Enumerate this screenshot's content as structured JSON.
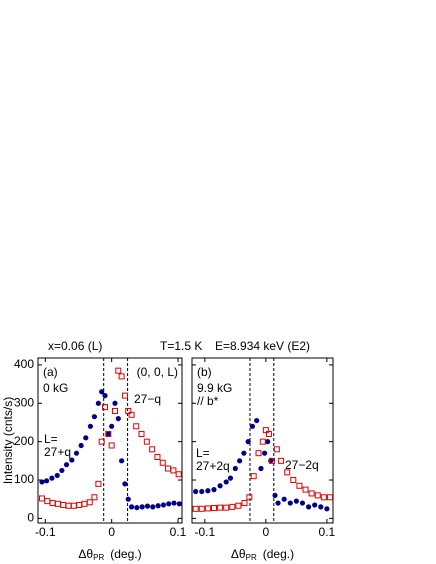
{
  "header": [
    "x=0.06 (L)",
    "T=1.5 K",
    "E=8.934 keV (E2)"
  ],
  "chart_data": [
    {
      "type": "scatter",
      "panel": "(a)",
      "field": [
        "0 kG"
      ],
      "index": "(0, 0, L)",
      "ylabel": "Intensity (cnts/s)",
      "xlabel": [
        "Δθ",
        "PR",
        "(deg.)"
      ],
      "xlim": [
        -0.111,
        0.106
      ],
      "ylim": [
        -12,
        418
      ],
      "xticks": [
        -0.1,
        0,
        0.1
      ],
      "yticks": [
        0,
        100,
        200,
        300,
        400
      ],
      "ytick_labels": true,
      "dashed": [
        -0.012,
        0.024
      ],
      "annotations": [
        [
          "L=",
          "27+q"
        ],
        [
          "27−q"
        ]
      ],
      "series": [
        {
          "color": "#00008b",
          "marker": "circle",
          "x": [
            -0.105,
            -0.098,
            -0.09,
            -0.082,
            -0.075,
            -0.068,
            -0.06,
            -0.053,
            -0.046,
            -0.039,
            -0.032,
            -0.026,
            -0.02,
            -0.015,
            -0.01,
            -0.005,
            0,
            0.005,
            0.01,
            0.015,
            0.02,
            0.025,
            0.03,
            0.038,
            0.046,
            0.054,
            0.062,
            0.07,
            0.078,
            0.086,
            0.094,
            0.102
          ],
          "values": [
            95,
            98,
            105,
            112,
            125,
            140,
            152,
            170,
            190,
            210,
            240,
            265,
            300,
            330,
            320,
            220,
            240,
            300,
            260,
            150,
            90,
            50,
            30,
            28,
            30,
            32,
            30,
            33,
            35,
            38,
            40,
            38
          ]
        },
        {
          "color": "#e00000",
          "marker": "square",
          "x": [
            -0.105,
            -0.097,
            -0.089,
            -0.081,
            -0.073,
            -0.065,
            -0.057,
            -0.049,
            -0.041,
            -0.033,
            -0.026,
            -0.02,
            -0.015,
            -0.01,
            -0.005,
            0,
            0.005,
            0.01,
            0.015,
            0.02,
            0.025,
            0.03,
            0.037,
            0.045,
            0.053,
            0.061,
            0.069,
            0.077,
            0.085,
            0.093,
            0.101
          ],
          "values": [
            52,
            45,
            40,
            38,
            35,
            33,
            33,
            35,
            38,
            42,
            55,
            90,
            200,
            290,
            220,
            190,
            280,
            385,
            370,
            320,
            280,
            270,
            240,
            220,
            200,
            180,
            160,
            145,
            130,
            125,
            115
          ]
        }
      ]
    },
    {
      "type": "scatter",
      "panel": "(b)",
      "field": [
        "9.9 kG",
        "// b*"
      ],
      "xlabel": [
        "Δθ",
        "PR",
        "(deg.)"
      ],
      "xlim": [
        -0.121,
        0.11
      ],
      "ylim": [
        -12,
        418
      ],
      "xticks": [
        -0.1,
        0,
        0.1
      ],
      "yticks": [
        0,
        100,
        200,
        300,
        400
      ],
      "ytick_labels": false,
      "dashed": [
        -0.026,
        0.013
      ],
      "annotations": [
        [
          "L=",
          "27+2q"
        ],
        [
          "27−2q"
        ]
      ],
      "series": [
        {
          "color": "#00008b",
          "marker": "circle",
          "x": [
            -0.115,
            -0.105,
            -0.095,
            -0.085,
            -0.075,
            -0.065,
            -0.058,
            -0.05,
            -0.043,
            -0.036,
            -0.029,
            -0.022,
            -0.015,
            -0.008,
            -0.002,
            0.003,
            0.008,
            0.015,
            0.02,
            0.03,
            0.04,
            0.05,
            0.06,
            0.07,
            0.08,
            0.09,
            0.1
          ],
          "values": [
            70,
            70,
            72,
            75,
            85,
            95,
            105,
            130,
            150,
            170,
            200,
            240,
            255,
            130,
            170,
            200,
            150,
            60,
            40,
            50,
            40,
            45,
            40,
            30,
            35,
            30,
            25
          ]
        },
        {
          "color": "#e00000",
          "marker": "square",
          "x": [
            -0.115,
            -0.105,
            -0.095,
            -0.085,
            -0.075,
            -0.065,
            -0.055,
            -0.045,
            -0.035,
            -0.027,
            -0.02,
            -0.012,
            -0.005,
            0,
            0.005,
            0.01,
            0.018,
            0.025,
            0.035,
            0.045,
            0.055,
            0.065,
            0.075,
            0.085,
            0.095,
            0.105
          ],
          "values": [
            25,
            25,
            26,
            27,
            28,
            28,
            30,
            33,
            40,
            55,
            110,
            170,
            200,
            230,
            220,
            150,
            180,
            150,
            120,
            100,
            85,
            75,
            65,
            60,
            55,
            55
          ]
        }
      ]
    }
  ]
}
